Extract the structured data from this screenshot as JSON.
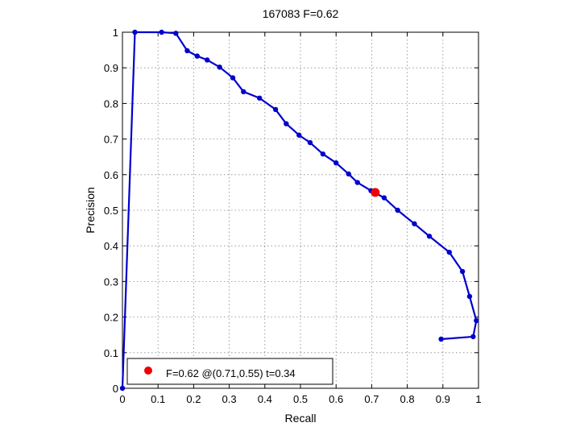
{
  "chart_data": {
    "type": "line",
    "title": "167083 F=0.62",
    "xlabel": "Recall",
    "ylabel": "Precision",
    "xlim": [
      0,
      1
    ],
    "ylim": [
      0,
      1
    ],
    "xticks": [
      0,
      0.1,
      0.2,
      0.3,
      0.4,
      0.5,
      0.6,
      0.7,
      0.8,
      0.9,
      1
    ],
    "yticks": [
      0,
      0.1,
      0.2,
      0.3,
      0.4,
      0.5,
      0.6,
      0.7,
      0.8,
      0.9,
      1
    ],
    "xtick_labels": [
      "0",
      "0.1",
      "0.2",
      "0.3",
      "0.4",
      "0.5",
      "0.6",
      "0.7",
      "0.8",
      "0.9",
      "1"
    ],
    "ytick_labels": [
      "0",
      "0.1",
      "0.2",
      "0.3",
      "0.4",
      "0.5",
      "0.6",
      "0.7",
      "0.8",
      "0.9",
      "1"
    ],
    "grid": true,
    "legend_position": "bottom-left",
    "series": [
      {
        "color": "#0000cc",
        "points": [
          [
            0.895,
            0.138
          ],
          [
            0.985,
            0.145
          ],
          [
            0.994,
            0.19
          ],
          [
            0.975,
            0.258
          ],
          [
            0.955,
            0.328
          ],
          [
            0.918,
            0.382
          ],
          [
            0.862,
            0.427
          ],
          [
            0.82,
            0.462
          ],
          [
            0.773,
            0.5
          ],
          [
            0.735,
            0.535
          ],
          [
            0.698,
            0.555
          ],
          [
            0.66,
            0.578
          ],
          [
            0.635,
            0.602
          ],
          [
            0.6,
            0.633
          ],
          [
            0.563,
            0.658
          ],
          [
            0.527,
            0.69
          ],
          [
            0.496,
            0.711
          ],
          [
            0.46,
            0.743
          ],
          [
            0.43,
            0.783
          ],
          [
            0.385,
            0.815
          ],
          [
            0.34,
            0.833
          ],
          [
            0.31,
            0.872
          ],
          [
            0.273,
            0.902
          ],
          [
            0.238,
            0.922
          ],
          [
            0.21,
            0.933
          ],
          [
            0.182,
            0.948
          ],
          [
            0.15,
            0.997
          ],
          [
            0.11,
            1.0
          ],
          [
            0.035,
            1.0
          ],
          [
            0.0,
            0.0
          ]
        ]
      }
    ],
    "highlight": {
      "x": 0.71,
      "y": 0.55,
      "color": "#ee0000",
      "label": "F=0.62 @(0.71,0.55) t=0.34"
    }
  }
}
